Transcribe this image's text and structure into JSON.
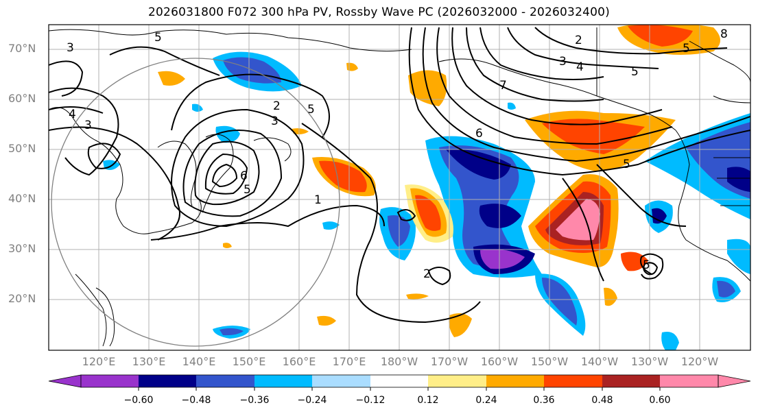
{
  "title": "2026031800 F072 300 hPa PV, Rossby Wave PC (2026032000 - 2026032400)",
  "lat_labels": [
    "70°N",
    "60°N",
    "50°N",
    "40°N",
    "30°N",
    "20°N"
  ],
  "lon_labels": [
    "120°E",
    "130°E",
    "140°E",
    "150°E",
    "160°E",
    "170°E",
    "180°W",
    "170°W",
    "160°W",
    "150°W",
    "140°W",
    "130°W",
    "120°W"
  ],
  "colorbar": {
    "colors": [
      "#9933cc",
      "#000088",
      "#3355cc",
      "#00bbff",
      "#aaddff",
      "#ffffff",
      "#ffee88",
      "#ffaa00",
      "#ff4400",
      "#aa2222",
      "#ff88aa"
    ],
    "ticks": [
      "−0.60",
      "−0.48",
      "−0.36",
      "−0.24",
      "−0.12",
      "0.12",
      "0.24",
      "0.36",
      "0.48",
      "0.60"
    ]
  },
  "contour_labels": [
    "1",
    "2",
    "3",
    "4",
    "5",
    "6",
    "7",
    "8"
  ]
}
